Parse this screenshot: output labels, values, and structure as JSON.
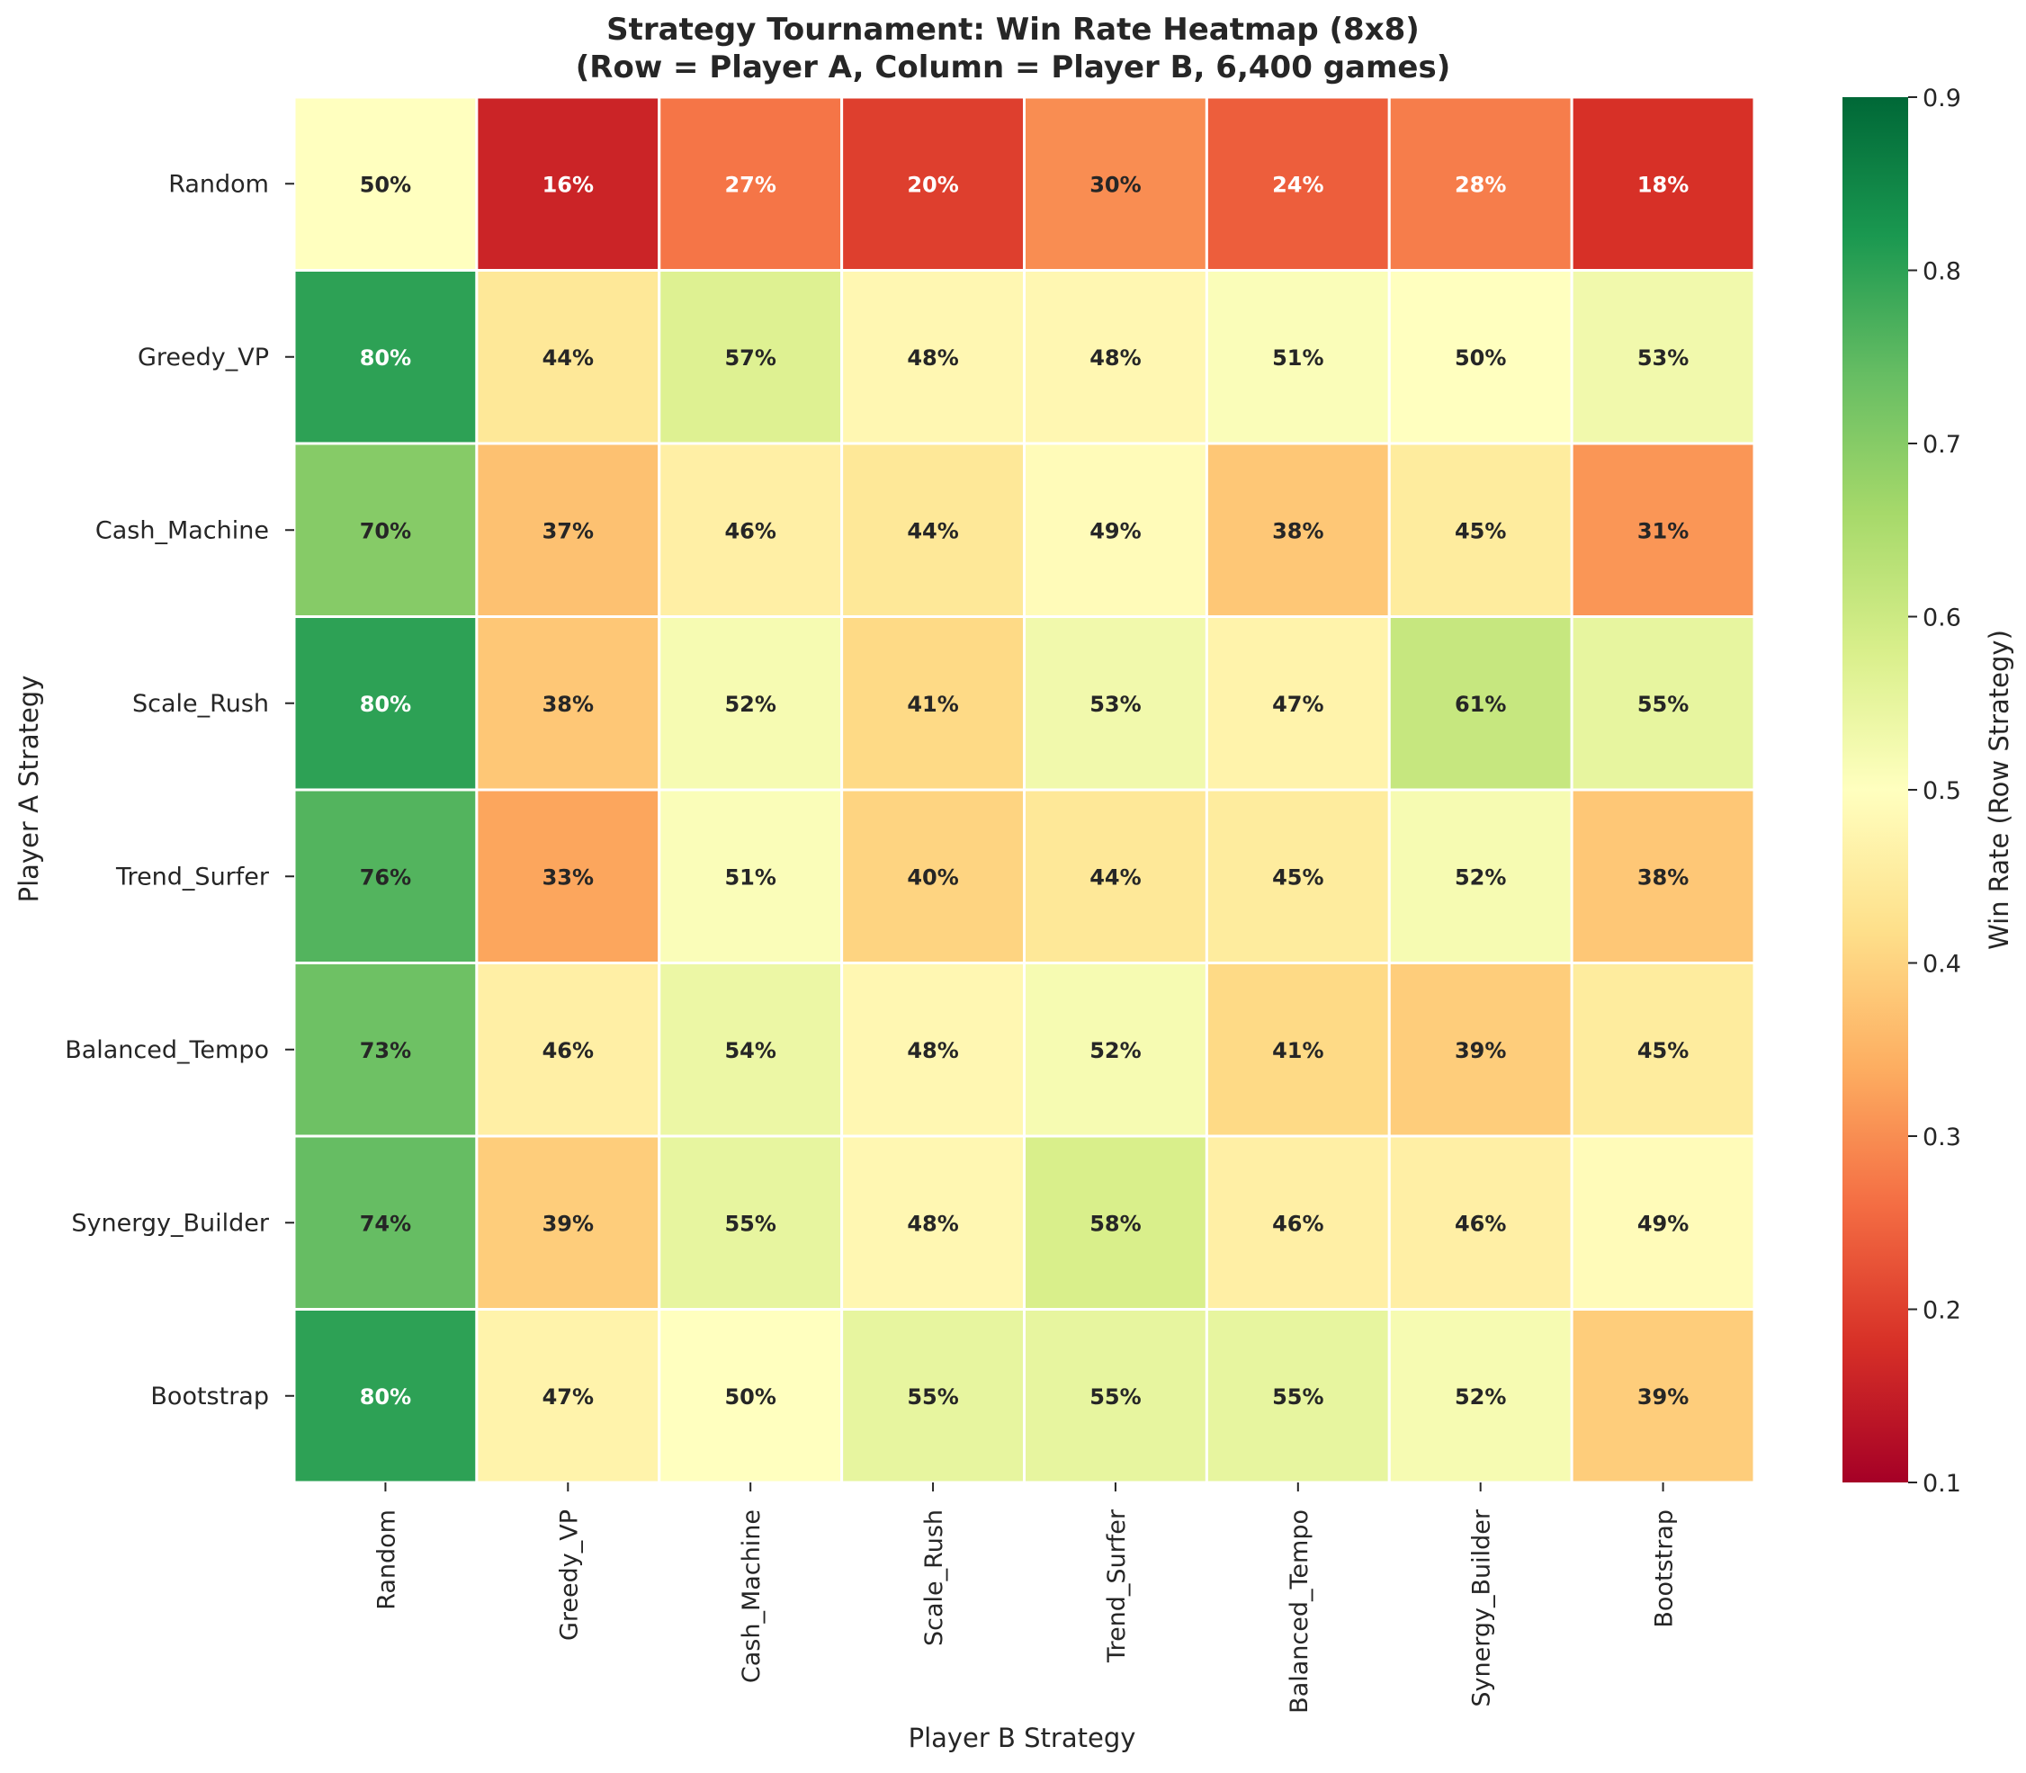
{
  "chart_data": {
    "type": "heatmap",
    "title_line1": "Strategy Tournament: Win Rate Heatmap (8x8)",
    "title_line2": "(Row = Player A, Column = Player B, 6,400 games)",
    "xlabel": "Player B Strategy",
    "ylabel": "Player A Strategy",
    "colorbar_label": "Win Rate (Row Strategy)",
    "colormap": "RdYlGn",
    "vmin": 0.1,
    "vmax": 0.9,
    "colorbar_ticks": [
      "0.1",
      "0.2",
      "0.3",
      "0.4",
      "0.5",
      "0.6",
      "0.7",
      "0.8",
      "0.9"
    ],
    "rows": [
      "Random",
      "Greedy_VP",
      "Cash_Machine",
      "Scale_Rush",
      "Trend_Surfer",
      "Balanced_Tempo",
      "Synergy_Builder",
      "Bootstrap"
    ],
    "columns": [
      "Random",
      "Greedy_VP",
      "Cash_Machine",
      "Scale_Rush",
      "Trend_Surfer",
      "Balanced_Tempo",
      "Synergy_Builder",
      "Bootstrap"
    ],
    "values": [
      [
        0.5,
        0.16,
        0.27,
        0.2,
        0.3,
        0.24,
        0.28,
        0.18
      ],
      [
        0.8,
        0.44,
        0.57,
        0.48,
        0.48,
        0.51,
        0.5,
        0.53
      ],
      [
        0.7,
        0.37,
        0.46,
        0.44,
        0.49,
        0.38,
        0.45,
        0.31
      ],
      [
        0.8,
        0.38,
        0.52,
        0.41,
        0.53,
        0.47,
        0.61,
        0.55
      ],
      [
        0.76,
        0.33,
        0.51,
        0.4,
        0.44,
        0.45,
        0.52,
        0.38
      ],
      [
        0.73,
        0.46,
        0.54,
        0.48,
        0.52,
        0.41,
        0.39,
        0.45
      ],
      [
        0.74,
        0.39,
        0.55,
        0.48,
        0.58,
        0.46,
        0.46,
        0.49
      ],
      [
        0.8,
        0.47,
        0.5,
        0.55,
        0.55,
        0.55,
        0.52,
        0.39
      ]
    ],
    "cell_labels": [
      [
        "50%",
        "16%",
        "27%",
        "20%",
        "30%",
        "24%",
        "28%",
        "18%"
      ],
      [
        "80%",
        "44%",
        "57%",
        "48%",
        "48%",
        "51%",
        "50%",
        "53%"
      ],
      [
        "70%",
        "37%",
        "46%",
        "44%",
        "49%",
        "38%",
        "45%",
        "31%"
      ],
      [
        "80%",
        "38%",
        "52%",
        "41%",
        "53%",
        "47%",
        "61%",
        "55%"
      ],
      [
        "76%",
        "33%",
        "51%",
        "40%",
        "44%",
        "45%",
        "52%",
        "38%"
      ],
      [
        "73%",
        "46%",
        "54%",
        "48%",
        "52%",
        "41%",
        "39%",
        "45%"
      ],
      [
        "74%",
        "39%",
        "55%",
        "48%",
        "58%",
        "46%",
        "46%",
        "49%"
      ],
      [
        "80%",
        "47%",
        "50%",
        "55%",
        "55%",
        "55%",
        "52%",
        "39%"
      ]
    ]
  }
}
